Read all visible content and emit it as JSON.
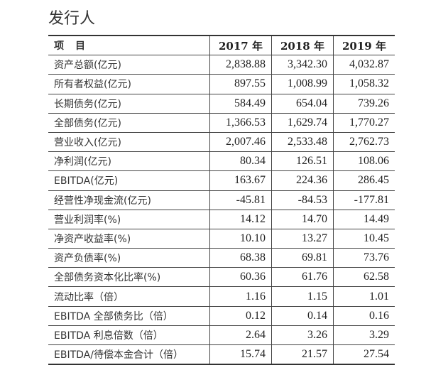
{
  "title": "发行人",
  "table": {
    "headers": [
      "项　目",
      "2017 年",
      "2018 年",
      "2019 年"
    ],
    "rows": [
      [
        "资产总额(亿元)",
        "2,838.88",
        "3,342.30",
        "4,032.87"
      ],
      [
        "所有者权益(亿元)",
        "897.55",
        "1,008.99",
        "1,058.32"
      ],
      [
        "长期债务(亿元)",
        "584.49",
        "654.04",
        "739.26"
      ],
      [
        "全部债务(亿元)",
        "1,366.53",
        "1,629.74",
        "1,770.27"
      ],
      [
        "营业收入(亿元)",
        "2,007.46",
        "2,533.48",
        "2,762.73"
      ],
      [
        "净利润(亿元)",
        "80.34",
        "126.51",
        "108.06"
      ],
      [
        "EBITDA(亿元)",
        "163.67",
        "224.36",
        "286.45"
      ],
      [
        "经营性净现金流(亿元)",
        "-45.81",
        "-84.53",
        "-177.81"
      ],
      [
        "营业利润率(%)",
        "14.12",
        "14.70",
        "14.49"
      ],
      [
        "净资产收益率(%)",
        "10.10",
        "13.27",
        "10.45"
      ],
      [
        "资产负债率(%)",
        "68.38",
        "69.81",
        "73.76"
      ],
      [
        "全部债务资本化比率(%)",
        "60.36",
        "61.76",
        "62.58"
      ],
      [
        "流动比率（倍）",
        "1.16",
        "1.15",
        "1.01"
      ],
      [
        "EBITDA 全部债务比（倍）",
        "0.12",
        "0.14",
        "0.16"
      ],
      [
        "EBITDA 利息倍数（倍）",
        "2.64",
        "3.26",
        "3.29"
      ],
      [
        "EBITDA/待偿本金合计（倍）",
        "15.74",
        "21.57",
        "27.54"
      ]
    ]
  }
}
